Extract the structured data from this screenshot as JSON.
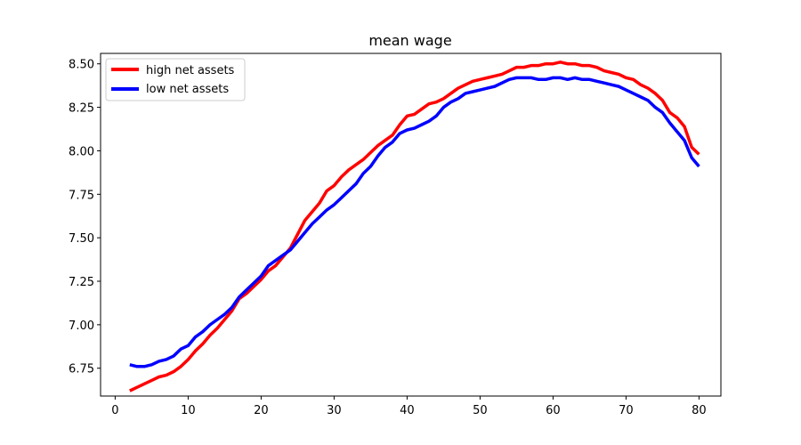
{
  "chart_data": {
    "type": "line",
    "title": "mean wage",
    "xlabel": "",
    "ylabel": "",
    "xlim": [
      -2,
      83
    ],
    "ylim": [
      6.59,
      8.56
    ],
    "xticks": [
      0,
      10,
      20,
      30,
      40,
      50,
      60,
      70,
      80
    ],
    "yticks": [
      6.75,
      7.0,
      7.25,
      7.5,
      7.75,
      8.0,
      8.25,
      8.5
    ],
    "legend_position": "top-left",
    "grid": false,
    "series": [
      {
        "name": "high net assets",
        "color": "#ff0000",
        "x": [
          2,
          3,
          4,
          5,
          6,
          7,
          8,
          9,
          10,
          11,
          12,
          13,
          14,
          15,
          16,
          17,
          18,
          19,
          20,
          21,
          22,
          23,
          24,
          25,
          26,
          27,
          28,
          29,
          30,
          31,
          32,
          33,
          34,
          35,
          36,
          37,
          38,
          39,
          40,
          41,
          42,
          43,
          44,
          45,
          46,
          47,
          48,
          49,
          50,
          51,
          52,
          53,
          54,
          55,
          56,
          57,
          58,
          59,
          60,
          61,
          62,
          63,
          64,
          65,
          66,
          67,
          68,
          69,
          70,
          71,
          72,
          73,
          74,
          75,
          76,
          77,
          78,
          79,
          80
        ],
        "y": [
          6.62,
          6.64,
          6.66,
          6.68,
          6.7,
          6.71,
          6.73,
          6.76,
          6.8,
          6.85,
          6.89,
          6.94,
          6.98,
          7.03,
          7.08,
          7.15,
          7.18,
          7.22,
          7.26,
          7.31,
          7.34,
          7.39,
          7.44,
          7.52,
          7.6,
          7.65,
          7.7,
          7.77,
          7.8,
          7.85,
          7.89,
          7.92,
          7.95,
          7.99,
          8.03,
          8.06,
          8.09,
          8.15,
          8.2,
          8.21,
          8.24,
          8.27,
          8.28,
          8.3,
          8.33,
          8.36,
          8.38,
          8.4,
          8.41,
          8.42,
          8.43,
          8.44,
          8.46,
          8.48,
          8.48,
          8.49,
          8.49,
          8.5,
          8.5,
          8.51,
          8.5,
          8.5,
          8.49,
          8.49,
          8.48,
          8.46,
          8.45,
          8.44,
          8.42,
          8.41,
          8.38,
          8.36,
          8.33,
          8.29,
          8.22,
          8.19,
          8.14,
          8.02,
          7.98
        ]
      },
      {
        "name": "low net assets",
        "color": "#0000ff",
        "x": [
          2,
          3,
          4,
          5,
          6,
          7,
          8,
          9,
          10,
          11,
          12,
          13,
          14,
          15,
          16,
          17,
          18,
          19,
          20,
          21,
          22,
          23,
          24,
          25,
          26,
          27,
          28,
          29,
          30,
          31,
          32,
          33,
          34,
          35,
          36,
          37,
          38,
          39,
          40,
          41,
          42,
          43,
          44,
          45,
          46,
          47,
          48,
          49,
          50,
          51,
          52,
          53,
          54,
          55,
          56,
          57,
          58,
          59,
          60,
          61,
          62,
          63,
          64,
          65,
          66,
          67,
          68,
          69,
          70,
          71,
          72,
          73,
          74,
          75,
          76,
          77,
          78,
          79,
          80
        ],
        "y": [
          6.77,
          6.76,
          6.76,
          6.77,
          6.79,
          6.8,
          6.82,
          6.86,
          6.88,
          6.93,
          6.96,
          7.0,
          7.03,
          7.06,
          7.1,
          7.16,
          7.2,
          7.24,
          7.28,
          7.34,
          7.37,
          7.4,
          7.43,
          7.48,
          7.53,
          7.58,
          7.62,
          7.66,
          7.69,
          7.73,
          7.77,
          7.81,
          7.87,
          7.91,
          7.97,
          8.02,
          8.05,
          8.1,
          8.12,
          8.13,
          8.15,
          8.17,
          8.2,
          8.25,
          8.28,
          8.3,
          8.33,
          8.34,
          8.35,
          8.36,
          8.37,
          8.39,
          8.41,
          8.42,
          8.42,
          8.42,
          8.41,
          8.41,
          8.42,
          8.42,
          8.41,
          8.42,
          8.41,
          8.41,
          8.4,
          8.39,
          8.38,
          8.37,
          8.35,
          8.33,
          8.31,
          8.29,
          8.25,
          8.22,
          8.16,
          8.11,
          8.06,
          7.96,
          7.91
        ]
      }
    ]
  }
}
